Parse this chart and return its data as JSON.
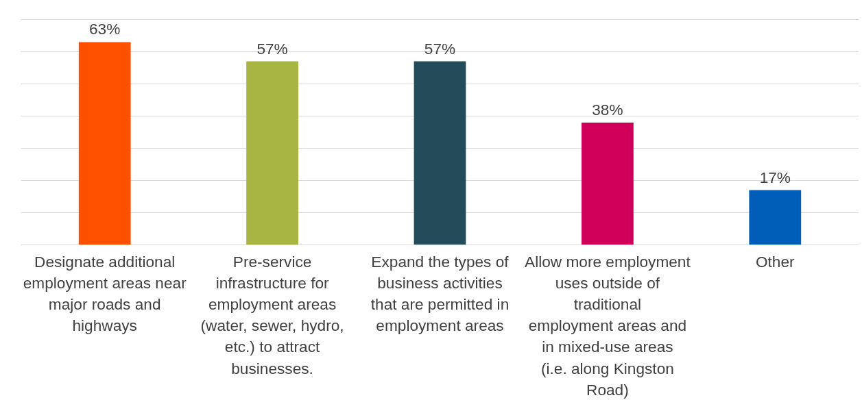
{
  "chart_data": {
    "type": "bar",
    "categories": [
      "Designate additional employment areas near major roads and highways",
      "Pre-service infrastructure for employment areas (water, sewer, hydro, etc.) to attract businesses.",
      "Expand the types of business activities that are permitted in employment areas",
      "Allow more employment uses outside of traditional employment areas and in mixed-use areas (i.e. along Kingston Road)",
      "Other"
    ],
    "values": [
      63,
      57,
      57,
      38,
      17
    ],
    "value_labels": [
      "63%",
      "57%",
      "57%",
      "38%",
      "17%"
    ],
    "colors": [
      "#ff5000",
      "#a8b543",
      "#244b5a",
      "#d0005a",
      "#005eb8"
    ],
    "ylim": [
      0,
      70
    ],
    "yticks": [
      {
        "value": 0,
        "label": null
      },
      {
        "value": 10,
        "label": null
      },
      {
        "value": 20,
        "label": null
      },
      {
        "value": 30,
        "label": null
      },
      {
        "value": 40,
        "label": null
      },
      {
        "value": 50,
        "label": null
      },
      {
        "value": 60,
        "label": null
      },
      {
        "value": 70,
        "label": null
      }
    ],
    "grid": "y",
    "tick_labels": "x"
  }
}
